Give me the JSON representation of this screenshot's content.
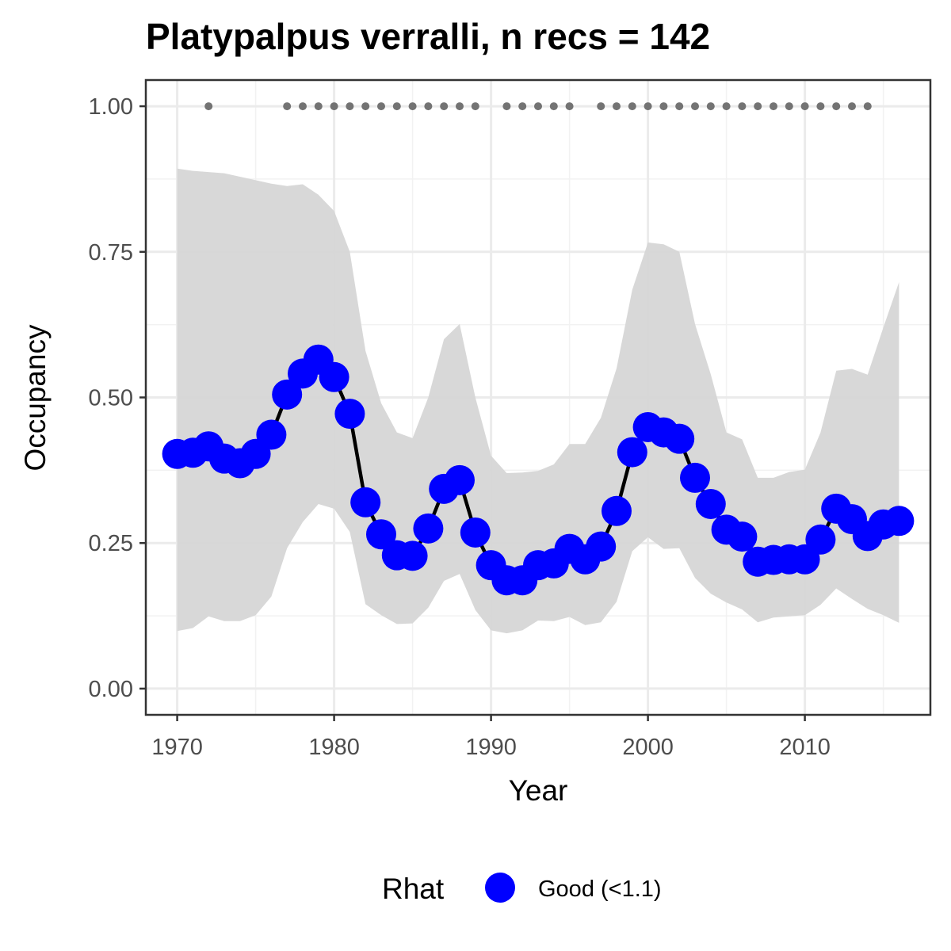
{
  "chart_data": {
    "type": "line",
    "title": "Platypalpus verralli, n recs = 142",
    "xlabel": "Year",
    "ylabel": "Occupancy",
    "xlim": [
      1968,
      2018
    ],
    "ylim": [
      -0.045,
      1.045
    ],
    "x_ticks": [
      1970,
      1980,
      1990,
      2000,
      2010
    ],
    "x_tick_labels": [
      "1970",
      "1980",
      "1990",
      "2000",
      "2010"
    ],
    "y_ticks": [
      0,
      0.25,
      0.5,
      0.75,
      1.0
    ],
    "y_tick_labels": [
      "0.00",
      "0.25",
      "0.50",
      "0.75",
      "1.00"
    ],
    "grid": true,
    "x": [
      1970,
      1971,
      1972,
      1973,
      1974,
      1975,
      1976,
      1977,
      1978,
      1979,
      1980,
      1981,
      1982,
      1983,
      1984,
      1985,
      1986,
      1987,
      1988,
      1989,
      1990,
      1991,
      1992,
      1993,
      1994,
      1995,
      1996,
      1997,
      1998,
      1999,
      2000,
      2001,
      2002,
      2003,
      2004,
      2005,
      2006,
      2007,
      2008,
      2009,
      2010,
      2011,
      2012,
      2013,
      2014,
      2015,
      2016
    ],
    "series": [
      {
        "values": [
          0.403,
          0.405,
          0.416,
          0.395,
          0.387,
          0.403,
          0.436,
          0.505,
          0.541,
          0.565,
          0.535,
          0.472,
          0.32,
          0.265,
          0.229,
          0.228,
          0.275,
          0.343,
          0.358,
          0.268,
          0.212,
          0.186,
          0.186,
          0.212,
          0.215,
          0.24,
          0.222,
          0.244,
          0.305,
          0.406,
          0.449,
          0.44,
          0.429,
          0.362,
          0.317,
          0.273,
          0.261,
          0.218,
          0.221,
          0.222,
          0.222,
          0.256,
          0.309,
          0.291,
          0.262,
          0.282,
          0.288
        ],
        "lower": [
          0.099,
          0.104,
          0.124,
          0.116,
          0.116,
          0.126,
          0.158,
          0.241,
          0.286,
          0.317,
          0.309,
          0.269,
          0.145,
          0.126,
          0.111,
          0.112,
          0.139,
          0.185,
          0.197,
          0.135,
          0.1,
          0.095,
          0.1,
          0.117,
          0.116,
          0.123,
          0.109,
          0.114,
          0.149,
          0.236,
          0.26,
          0.24,
          0.241,
          0.19,
          0.163,
          0.148,
          0.136,
          0.114,
          0.122,
          0.124,
          0.126,
          0.144,
          0.172,
          0.154,
          0.137,
          0.126,
          0.113
        ],
        "upper": [
          0.893,
          0.889,
          0.887,
          0.885,
          0.879,
          0.873,
          0.867,
          0.863,
          0.866,
          0.848,
          0.82,
          0.75,
          0.58,
          0.49,
          0.44,
          0.43,
          0.5,
          0.6,
          0.626,
          0.5,
          0.4,
          0.37,
          0.371,
          0.374,
          0.385,
          0.42,
          0.42,
          0.465,
          0.55,
          0.685,
          0.766,
          0.763,
          0.75,
          0.626,
          0.54,
          0.44,
          0.428,
          0.362,
          0.362,
          0.372,
          0.376,
          0.44,
          0.546,
          0.549,
          0.539,
          0.62,
          0.698
        ],
        "color": "#0000ff",
        "line_color": "#000000",
        "band_color": "#d6d6d6"
      }
    ],
    "record_years": [
      1972,
      1977,
      1978,
      1979,
      1980,
      1981,
      1982,
      1983,
      1984,
      1985,
      1986,
      1987,
      1988,
      1989,
      1991,
      1992,
      1993,
      1994,
      1995,
      1997,
      1998,
      1999,
      2000,
      2001,
      2002,
      2003,
      2004,
      2005,
      2006,
      2007,
      2008,
      2009,
      2010,
      2011,
      2012,
      2013,
      2014
    ],
    "record_value": 1.0,
    "record_color": "#737373",
    "legend": {
      "title": "Rhat",
      "entries": [
        {
          "label": "Good (<1.1)",
          "color": "#0000ff"
        }
      ],
      "placement": "bottom"
    }
  }
}
